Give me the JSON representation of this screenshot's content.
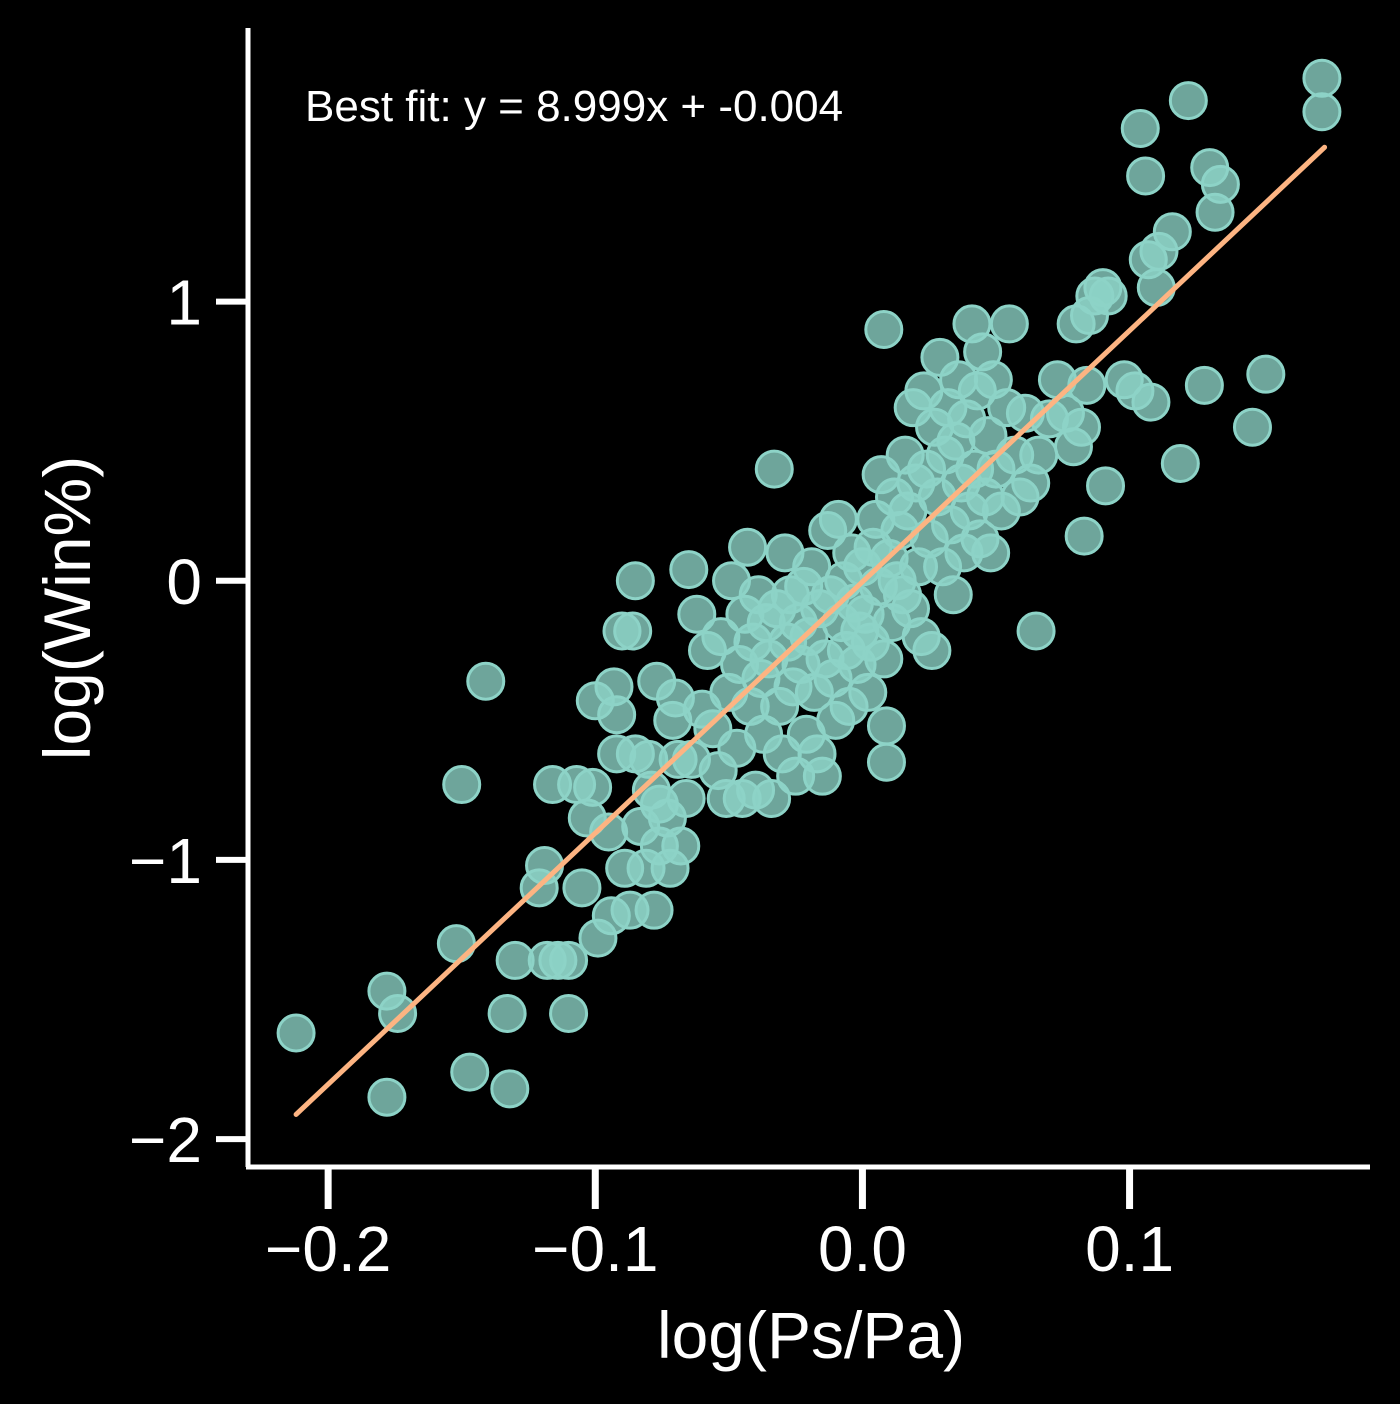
{
  "chart_data": {
    "type": "scatter",
    "xlabel": "log(Ps/Pa)",
    "ylabel": "log(Win%)",
    "xlim": [
      -0.23,
      0.19
    ],
    "ylim": [
      -2.1,
      1.98
    ],
    "xticks": [
      -0.2,
      -0.1,
      0.0,
      0.1
    ],
    "xtick_labels": [
      "−0.2",
      "−0.1",
      "0.0",
      "0.1"
    ],
    "yticks": [
      -2,
      -1,
      0,
      1
    ],
    "ytick_labels": [
      "−2",
      "−1",
      "0",
      "1"
    ],
    "grid": false,
    "annotation": "Best fit: y = 8.999x + -0.004",
    "colors": {
      "background": "#000000",
      "points": "#8dd3c7",
      "fit_line": "#fdb482",
      "axes": "#ffffff"
    },
    "fit_line": {
      "slope": 8.999,
      "intercept": -0.004,
      "x_range": [
        -0.212,
        0.173
      ]
    },
    "series": [
      {
        "values": [
          [
            -0.212,
            -1.62
          ],
          [
            -0.178,
            -1.47
          ],
          [
            -0.178,
            -1.85
          ],
          [
            -0.174,
            -1.55
          ],
          [
            -0.152,
            -1.3
          ],
          [
            -0.15,
            -0.73
          ],
          [
            -0.147,
            -1.76
          ],
          [
            -0.141,
            -0.36
          ],
          [
            -0.133,
            -1.55
          ],
          [
            -0.132,
            -1.82
          ],
          [
            -0.13,
            -1.36
          ],
          [
            -0.121,
            -1.1
          ],
          [
            -0.119,
            -1.02
          ],
          [
            -0.118,
            -1.36
          ],
          [
            -0.116,
            -0.73
          ],
          [
            -0.114,
            -1.36
          ],
          [
            -0.11,
            -1.55
          ],
          [
            -0.11,
            -1.36
          ],
          [
            -0.107,
            -0.73
          ],
          [
            -0.105,
            -1.1
          ],
          [
            -0.103,
            -0.85
          ],
          [
            -0.101,
            -0.74
          ],
          [
            -0.1,
            -0.43
          ],
          [
            -0.099,
            -1.28
          ],
          [
            -0.095,
            -0.9
          ],
          [
            -0.094,
            -1.2
          ],
          [
            -0.093,
            -0.38
          ],
          [
            -0.092,
            -0.48
          ],
          [
            -0.092,
            -0.62
          ],
          [
            -0.09,
            -0.18
          ],
          [
            -0.089,
            -1.03
          ],
          [
            -0.087,
            -1.18
          ],
          [
            -0.086,
            -0.18
          ],
          [
            -0.085,
            -0.62
          ],
          [
            -0.085,
            0.0
          ],
          [
            -0.083,
            -0.88
          ],
          [
            -0.081,
            -1.03
          ],
          [
            -0.08,
            -0.64
          ],
          [
            -0.079,
            -0.75
          ],
          [
            -0.078,
            -1.18
          ],
          [
            -0.077,
            -0.36
          ],
          [
            -0.076,
            -0.95
          ],
          [
            -0.076,
            -0.8
          ],
          [
            -0.073,
            -0.85
          ],
          [
            -0.072,
            -1.03
          ],
          [
            -0.071,
            -0.5
          ],
          [
            -0.07,
            -0.42
          ],
          [
            -0.069,
            -0.64
          ],
          [
            -0.068,
            -0.95
          ],
          [
            -0.066,
            -0.78
          ],
          [
            -0.065,
            0.04
          ],
          [
            -0.064,
            -0.64
          ],
          [
            -0.062,
            -0.12
          ],
          [
            -0.06,
            -0.46
          ],
          [
            -0.058,
            -0.25
          ],
          [
            -0.056,
            -0.53
          ],
          [
            -0.054,
            -0.68
          ],
          [
            -0.053,
            -0.2
          ],
          [
            -0.051,
            -0.78
          ],
          [
            -0.05,
            -0.4
          ],
          [
            -0.049,
            0.0
          ],
          [
            -0.047,
            -0.6
          ],
          [
            -0.046,
            -0.3
          ],
          [
            -0.045,
            -0.78
          ],
          [
            -0.044,
            -0.12
          ],
          [
            -0.043,
            0.12
          ],
          [
            -0.042,
            -0.45
          ],
          [
            -0.041,
            -0.22
          ],
          [
            -0.04,
            -0.75
          ],
          [
            -0.039,
            -0.05
          ],
          [
            -0.038,
            -0.35
          ],
          [
            -0.037,
            -0.55
          ],
          [
            -0.036,
            -0.15
          ],
          [
            -0.035,
            -0.28
          ],
          [
            -0.034,
            -0.78
          ],
          [
            -0.033,
            0.4
          ],
          [
            -0.032,
            -0.1
          ],
          [
            -0.031,
            -0.45
          ],
          [
            -0.03,
            -0.62
          ],
          [
            -0.029,
            0.1
          ],
          [
            -0.028,
            -0.22
          ],
          [
            -0.027,
            -0.05
          ],
          [
            -0.026,
            -0.38
          ],
          [
            -0.025,
            -0.7
          ],
          [
            -0.024,
            -0.15
          ],
          [
            -0.023,
            -0.3
          ],
          [
            -0.022,
            -0.02
          ],
          [
            -0.021,
            -0.55
          ],
          [
            -0.02,
            -0.2
          ],
          [
            -0.019,
            0.05
          ],
          [
            -0.018,
            -0.4
          ],
          [
            -0.017,
            -0.62
          ],
          [
            -0.016,
            -0.1
          ],
          [
            -0.015,
            -0.7
          ],
          [
            -0.014,
            -0.28
          ],
          [
            -0.013,
            0.18
          ],
          [
            -0.012,
            -0.05
          ],
          [
            -0.011,
            -0.35
          ],
          [
            -0.01,
            -0.5
          ],
          [
            -0.009,
            0.22
          ],
          [
            -0.008,
            -0.15
          ],
          [
            -0.007,
            0.0
          ],
          [
            -0.006,
            -0.25
          ],
          [
            -0.005,
            -0.45
          ],
          [
            -0.004,
            0.1
          ],
          [
            -0.003,
            -0.08
          ],
          [
            -0.002,
            -0.3
          ],
          [
            -0.001,
            -0.18
          ],
          [
            0.0,
            0.05
          ],
          [
            0.001,
            -0.12
          ],
          [
            0.002,
            -0.4
          ],
          [
            0.003,
            -0.22
          ],
          [
            0.004,
            0.12
          ],
          [
            0.005,
            0.22
          ],
          [
            0.006,
            -0.02
          ],
          [
            0.007,
            0.38
          ],
          [
            0.008,
            -0.28
          ],
          [
            0.008,
            0.9
          ],
          [
            0.009,
            -0.52
          ],
          [
            0.009,
            -0.65
          ],
          [
            0.01,
            0.08
          ],
          [
            0.011,
            -0.15
          ],
          [
            0.012,
            0.3
          ],
          [
            0.013,
            0.0
          ],
          [
            0.014,
            0.18
          ],
          [
            0.015,
            -0.05
          ],
          [
            0.016,
            0.45
          ],
          [
            0.017,
            0.25
          ],
          [
            0.018,
            -0.1
          ],
          [
            0.019,
            0.62
          ],
          [
            0.02,
            0.35
          ],
          [
            0.021,
            0.05
          ],
          [
            0.022,
            -0.2
          ],
          [
            0.023,
            0.68
          ],
          [
            0.024,
            0.4
          ],
          [
            0.025,
            0.15
          ],
          [
            0.026,
            -0.25
          ],
          [
            0.027,
            0.55
          ],
          [
            0.028,
            0.3
          ],
          [
            0.029,
            0.8
          ],
          [
            0.03,
            0.05
          ],
          [
            0.031,
            0.45
          ],
          [
            0.032,
            0.62
          ],
          [
            0.033,
            0.2
          ],
          [
            0.034,
            -0.05
          ],
          [
            0.035,
            0.5
          ],
          [
            0.036,
            0.72
          ],
          [
            0.037,
            0.35
          ],
          [
            0.038,
            0.1
          ],
          [
            0.039,
            0.58
          ],
          [
            0.04,
            0.25
          ],
          [
            0.041,
            0.92
          ],
          [
            0.042,
            0.4
          ],
          [
            0.043,
            0.68
          ],
          [
            0.044,
            0.15
          ],
          [
            0.045,
            0.82
          ],
          [
            0.046,
            0.3
          ],
          [
            0.047,
            0.52
          ],
          [
            0.048,
            0.1
          ],
          [
            0.049,
            0.72
          ],
          [
            0.05,
            0.4
          ],
          [
            0.052,
            0.25
          ],
          [
            0.054,
            0.62
          ],
          [
            0.055,
            0.92
          ],
          [
            0.057,
            0.45
          ],
          [
            0.059,
            0.3
          ],
          [
            0.061,
            0.6
          ],
          [
            0.063,
            0.35
          ],
          [
            0.065,
            -0.18
          ],
          [
            0.066,
            0.45
          ],
          [
            0.07,
            0.58
          ],
          [
            0.073,
            0.72
          ],
          [
            0.076,
            0.6
          ],
          [
            0.079,
            0.48
          ],
          [
            0.08,
            0.92
          ],
          [
            0.082,
            0.55
          ],
          [
            0.083,
            0.16
          ],
          [
            0.084,
            0.7
          ],
          [
            0.085,
            0.95
          ],
          [
            0.087,
            1.02
          ],
          [
            0.09,
            1.05
          ],
          [
            0.091,
            0.34
          ],
          [
            0.092,
            1.02
          ],
          [
            0.098,
            0.72
          ],
          [
            0.102,
            0.68
          ],
          [
            0.104,
            1.62
          ],
          [
            0.106,
            1.45
          ],
          [
            0.107,
            1.15
          ],
          [
            0.108,
            0.64
          ],
          [
            0.11,
            1.05
          ],
          [
            0.111,
            1.18
          ],
          [
            0.116,
            1.25
          ],
          [
            0.119,
            0.42
          ],
          [
            0.122,
            1.72
          ],
          [
            0.128,
            0.7
          ],
          [
            0.13,
            1.48
          ],
          [
            0.132,
            1.32
          ],
          [
            0.134,
            1.42
          ],
          [
            0.146,
            0.55
          ],
          [
            0.151,
            0.74
          ],
          [
            0.172,
            1.8
          ],
          [
            0.172,
            1.68
          ]
        ]
      }
    ]
  }
}
